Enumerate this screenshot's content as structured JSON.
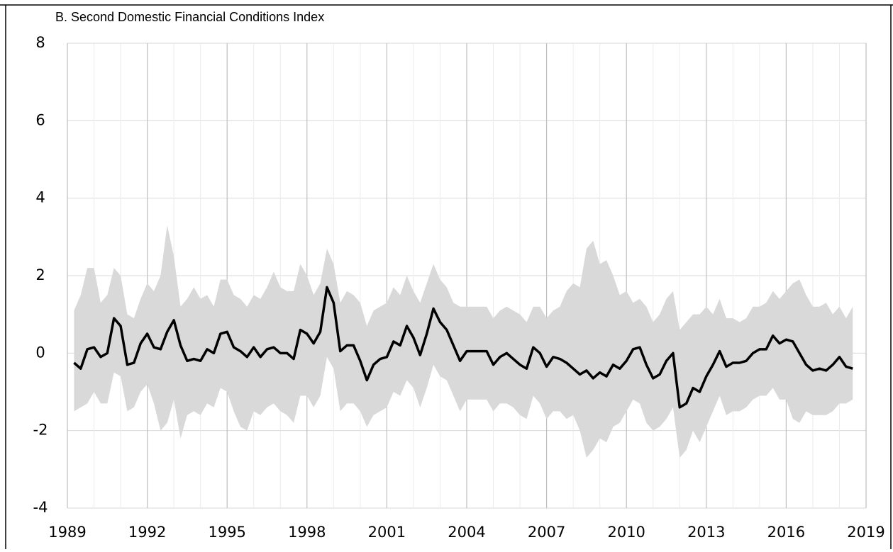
{
  "chart_data": {
    "type": "line",
    "title": "B.   Second Domestic Financial Conditions Index",
    "x": [
      1989.25,
      1989.5,
      1989.75,
      1990,
      1990.25,
      1990.5,
      1990.75,
      1991,
      1991.25,
      1991.5,
      1991.75,
      1992,
      1992.25,
      1992.5,
      1992.75,
      1993,
      1993.25,
      1993.5,
      1993.75,
      1994,
      1994.25,
      1994.5,
      1994.75,
      1995,
      1995.25,
      1995.5,
      1995.75,
      1996,
      1996.25,
      1996.5,
      1996.75,
      1997,
      1997.25,
      1997.5,
      1997.75,
      1998,
      1998.25,
      1998.5,
      1998.75,
      1999,
      1999.25,
      1999.5,
      1999.75,
      2000,
      2000.25,
      2000.5,
      2000.75,
      2001,
      2001.25,
      2001.5,
      2001.75,
      2002,
      2002.25,
      2002.5,
      2002.75,
      2003,
      2003.25,
      2003.5,
      2003.75,
      2004,
      2004.25,
      2004.5,
      2004.75,
      2005,
      2005.25,
      2005.5,
      2005.75,
      2006,
      2006.25,
      2006.5,
      2006.75,
      2007,
      2007.25,
      2007.5,
      2007.75,
      2008,
      2008.25,
      2008.5,
      2008.75,
      2009,
      2009.25,
      2009.5,
      2009.75,
      2010,
      2010.25,
      2010.5,
      2010.75,
      2011,
      2011.25,
      2011.5,
      2011.75,
      2012,
      2012.25,
      2012.5,
      2012.75,
      2013,
      2013.25,
      2013.5,
      2013.75,
      2014,
      2014.25,
      2014.5,
      2014.75,
      2015,
      2015.25,
      2015.5,
      2015.75,
      2016,
      2016.25,
      2016.5,
      2016.75,
      2017,
      2017.25,
      2017.5,
      2017.75,
      2018,
      2018.25,
      2018.5
    ],
    "band": {
      "color": "#d9d9d9",
      "upper": [
        1.1,
        1.5,
        2.2,
        2.2,
        1.3,
        1.5,
        2.2,
        2.0,
        1.0,
        0.9,
        1.4,
        1.8,
        1.6,
        2.0,
        3.3,
        2.5,
        1.2,
        1.4,
        1.7,
        1.4,
        1.5,
        1.2,
        1.9,
        1.9,
        1.5,
        1.4,
        1.2,
        1.5,
        1.4,
        1.7,
        2.1,
        1.7,
        1.6,
        1.6,
        2.3,
        2.0,
        1.5,
        1.8,
        2.7,
        2.3,
        1.3,
        1.6,
        1.5,
        1.3,
        0.7,
        1.1,
        1.2,
        1.3,
        1.7,
        1.5,
        2.0,
        1.6,
        1.3,
        1.8,
        2.3,
        1.9,
        1.7,
        1.3,
        1.2,
        1.2,
        1.2,
        1.2,
        1.2,
        0.9,
        1.1,
        1.2,
        1.1,
        1.0,
        0.8,
        1.2,
        1.2,
        0.9,
        1.1,
        1.2,
        1.6,
        1.8,
        1.7,
        2.7,
        2.9,
        2.3,
        2.4,
        2.0,
        1.5,
        1.6,
        1.3,
        1.4,
        1.2,
        0.8,
        1.0,
        1.4,
        1.6,
        0.6,
        0.8,
        1.0,
        1.0,
        1.2,
        1.0,
        1.4,
        0.9,
        0.9,
        0.8,
        0.9,
        1.2,
        1.2,
        1.3,
        1.6,
        1.4,
        1.6,
        1.8,
        1.9,
        1.5,
        1.2,
        1.2,
        1.3,
        1.0,
        1.2,
        0.9,
        1.2
      ],
      "lower": [
        -1.5,
        -1.4,
        -1.3,
        -1.0,
        -1.3,
        -1.3,
        -0.5,
        -0.6,
        -1.5,
        -1.4,
        -1.0,
        -0.8,
        -1.3,
        -2.0,
        -1.8,
        -1.2,
        -2.2,
        -1.6,
        -1.5,
        -1.6,
        -1.3,
        -1.4,
        -0.9,
        -1.0,
        -1.5,
        -1.9,
        -2.0,
        -1.5,
        -1.6,
        -1.4,
        -1.3,
        -1.5,
        -1.6,
        -1.8,
        -1.1,
        -1.1,
        -1.4,
        -1.1,
        -0.1,
        -0.4,
        -1.5,
        -1.3,
        -1.3,
        -1.5,
        -1.9,
        -1.6,
        -1.5,
        -1.4,
        -1.0,
        -1.1,
        -0.7,
        -0.9,
        -1.4,
        -0.9,
        -0.3,
        -0.6,
        -0.7,
        -1.1,
        -1.5,
        -1.2,
        -1.2,
        -1.2,
        -1.2,
        -1.5,
        -1.3,
        -1.3,
        -1.4,
        -1.6,
        -1.7,
        -1.1,
        -1.3,
        -1.7,
        -1.5,
        -1.5,
        -1.7,
        -1.6,
        -2.0,
        -2.7,
        -2.5,
        -2.2,
        -2.3,
        -1.9,
        -1.8,
        -1.5,
        -1.2,
        -1.3,
        -1.8,
        -2.0,
        -1.9,
        -1.7,
        -1.4,
        -2.7,
        -2.5,
        -2.0,
        -2.3,
        -1.9,
        -1.5,
        -1.1,
        -1.6,
        -1.5,
        -1.5,
        -1.4,
        -1.2,
        -1.1,
        -1.1,
        -0.9,
        -1.2,
        -1.2,
        -1.7,
        -1.8,
        -1.5,
        -1.6,
        -1.6,
        -1.6,
        -1.5,
        -1.3,
        -1.3,
        -1.2
      ]
    },
    "series": [
      {
        "color": "#000000",
        "values": [
          -0.25,
          -0.4,
          0.1,
          0.15,
          -0.1,
          0.0,
          0.9,
          0.7,
          -0.3,
          -0.25,
          0.25,
          0.5,
          0.15,
          0.1,
          0.55,
          0.85,
          0.2,
          -0.2,
          -0.15,
          -0.2,
          0.1,
          0.0,
          0.5,
          0.55,
          0.15,
          0.05,
          -0.1,
          0.15,
          -0.1,
          0.1,
          0.15,
          0.0,
          0.0,
          -0.15,
          0.6,
          0.5,
          0.25,
          0.55,
          1.7,
          1.3,
          0.05,
          0.2,
          0.2,
          -0.2,
          -0.7,
          -0.3,
          -0.15,
          -0.1,
          0.3,
          0.2,
          0.7,
          0.4,
          -0.05,
          0.5,
          1.15,
          0.8,
          0.6,
          0.2,
          -0.2,
          0.05,
          0.05,
          0.05,
          0.05,
          -0.3,
          -0.1,
          0.0,
          -0.15,
          -0.3,
          -0.4,
          0.15,
          0.0,
          -0.35,
          -0.1,
          -0.15,
          -0.25,
          -0.4,
          -0.55,
          -0.45,
          -0.65,
          -0.5,
          -0.6,
          -0.3,
          -0.4,
          -0.2,
          0.1,
          0.15,
          -0.3,
          -0.65,
          -0.55,
          -0.2,
          0.0,
          -1.4,
          -1.3,
          -0.9,
          -1.0,
          -0.6,
          -0.3,
          0.05,
          -0.35,
          -0.25,
          -0.25,
          -0.2,
          0.0,
          0.1,
          0.1,
          0.45,
          0.25,
          0.35,
          0.3,
          0.0,
          -0.3,
          -0.45,
          -0.4,
          -0.45,
          -0.3,
          -0.1,
          -0.35,
          -0.4
        ]
      }
    ],
    "xlim": [
      1989,
      2019
    ],
    "xticks": [
      1989,
      1992,
      1995,
      1998,
      2001,
      2004,
      2007,
      2010,
      2013,
      2016,
      2019
    ],
    "ylim": [
      -4,
      8
    ],
    "yticks": [
      -4,
      -2,
      0,
      2,
      4,
      6,
      8
    ],
    "grid": true
  }
}
